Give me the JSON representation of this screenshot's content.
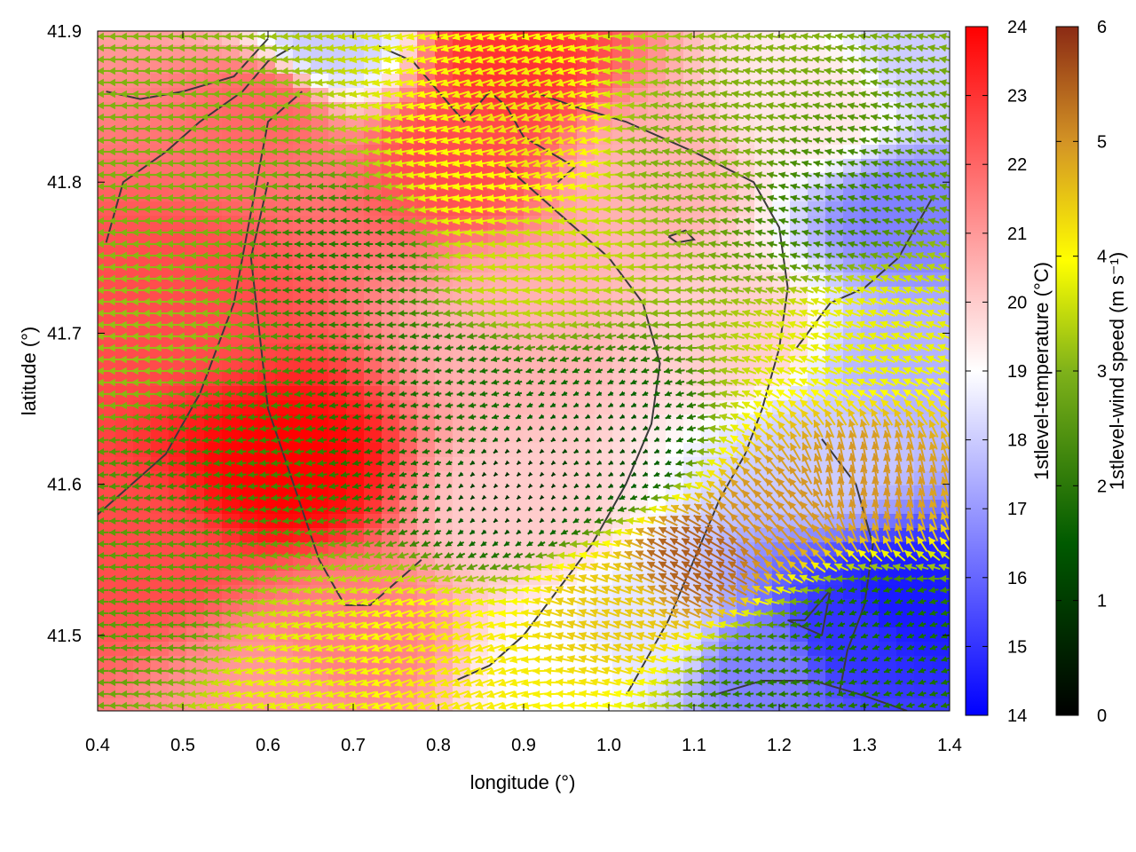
{
  "chart_data": {
    "type": "heatmap",
    "title": "",
    "xlabel": "longitude (°)",
    "ylabel": "latitude (°)",
    "xlim": [
      0.4,
      1.4
    ],
    "ylim": [
      41.45,
      41.9
    ],
    "grid": false,
    "x_ticks": [
      {
        "value": 0.4,
        "label": "0.4"
      },
      {
        "value": 0.5,
        "label": "0.5"
      },
      {
        "value": 0.6,
        "label": "0.6"
      },
      {
        "value": 0.7,
        "label": "0.7"
      },
      {
        "value": 0.8,
        "label": "0.8"
      },
      {
        "value": 0.9,
        "label": "0.9"
      },
      {
        "value": 1.0,
        "label": "1.0"
      },
      {
        "value": 1.1,
        "label": "1.1"
      },
      {
        "value": 1.2,
        "label": "1.2"
      },
      {
        "value": 1.3,
        "label": "1.3"
      },
      {
        "value": 1.4,
        "label": "1.4"
      }
    ],
    "y_ticks": [
      {
        "value": 41.5,
        "label": "41.5"
      },
      {
        "value": 41.6,
        "label": "41.6"
      },
      {
        "value": 41.7,
        "label": "41.7"
      },
      {
        "value": 41.8,
        "label": "41.8"
      },
      {
        "value": 41.9,
        "label": "41.9"
      }
    ],
    "temperature_colorbar": {
      "label": "1stlevel-temperature (°C)",
      "range": [
        14,
        24
      ],
      "ticks": [
        "14",
        "15",
        "16",
        "17",
        "18",
        "19",
        "20",
        "21",
        "22",
        "23",
        "24"
      ],
      "colors": [
        "#0000ff",
        "#ffffff",
        "#ff0000"
      ]
    },
    "wind_colorbar": {
      "label": "1stlevel-wind speed (m s⁻¹)",
      "range": [
        0,
        6
      ],
      "ticks": [
        "0",
        "1",
        "2",
        "3",
        "4",
        "5",
        "6"
      ],
      "colors": [
        "#000000",
        "#006400",
        "#9acd32",
        "#ffff00",
        "#cd853f",
        "#8b2500"
      ]
    },
    "temperature_field": [
      {
        "lon": 0.62,
        "lat": 41.61,
        "value": 24.0
      },
      {
        "lon": 0.5,
        "lat": 41.72,
        "value": 22.5
      },
      {
        "lon": 0.45,
        "lat": 41.55,
        "value": 22.5
      },
      {
        "lon": 0.82,
        "lat": 41.82,
        "value": 22.5
      },
      {
        "lon": 0.88,
        "lat": 41.88,
        "value": 23.0
      },
      {
        "lon": 0.6,
        "lat": 41.85,
        "value": 22.0
      },
      {
        "lon": 0.7,
        "lat": 41.5,
        "value": 21.5
      },
      {
        "lon": 0.9,
        "lat": 41.7,
        "value": 20.5
      },
      {
        "lon": 0.9,
        "lat": 41.58,
        "value": 20.0
      },
      {
        "lon": 1.05,
        "lat": 41.8,
        "value": 20.5
      },
      {
        "lon": 1.15,
        "lat": 41.7,
        "value": 20.0
      },
      {
        "lon": 1.25,
        "lat": 41.85,
        "value": 19.5
      },
      {
        "lon": 0.67,
        "lat": 41.89,
        "value": 18.0
      },
      {
        "lon": 1.38,
        "lat": 41.88,
        "value": 18.0
      },
      {
        "lon": 1.35,
        "lat": 41.78,
        "value": 16.5
      },
      {
        "lon": 1.35,
        "lat": 41.68,
        "value": 17.5
      },
      {
        "lon": 1.25,
        "lat": 41.62,
        "value": 18.0
      },
      {
        "lon": 1.35,
        "lat": 41.52,
        "value": 14.5
      },
      {
        "lon": 1.28,
        "lat": 41.5,
        "value": 15.0
      },
      {
        "lon": 1.18,
        "lat": 41.48,
        "value": 16.5
      },
      {
        "lon": 1.05,
        "lat": 41.5,
        "value": 18.5
      },
      {
        "lon": 0.95,
        "lat": 41.47,
        "value": 19.0
      },
      {
        "lon": 0.6,
        "lat": 41.46,
        "value": 21.0
      }
    ],
    "wind_field": [
      {
        "lon": 0.5,
        "lat": 41.8,
        "speed": 2.8,
        "dir": 180
      },
      {
        "lon": 0.45,
        "lat": 41.7,
        "speed": 3.0,
        "dir": 180
      },
      {
        "lon": 0.55,
        "lat": 41.62,
        "speed": 2.2,
        "dir": 185
      },
      {
        "lon": 0.45,
        "lat": 41.52,
        "speed": 2.5,
        "dir": 180
      },
      {
        "lon": 0.7,
        "lat": 41.75,
        "speed": 2.0,
        "dir": 180
      },
      {
        "lon": 0.85,
        "lat": 41.8,
        "speed": 4.0,
        "dir": 190
      },
      {
        "lon": 0.9,
        "lat": 41.83,
        "speed": 4.3,
        "dir": 200
      },
      {
        "lon": 0.9,
        "lat": 41.75,
        "speed": 3.5,
        "dir": 185
      },
      {
        "lon": 1.1,
        "lat": 41.82,
        "speed": 2.8,
        "dir": 170
      },
      {
        "lon": 1.25,
        "lat": 41.78,
        "speed": 2.2,
        "dir": 165
      },
      {
        "lon": 1.3,
        "lat": 41.7,
        "speed": 3.8,
        "dir": 160
      },
      {
        "lon": 0.8,
        "lat": 41.65,
        "speed": 1.6,
        "dir": 190
      },
      {
        "lon": 0.9,
        "lat": 41.6,
        "speed": 0.5,
        "dir": 225
      },
      {
        "lon": 1.0,
        "lat": 41.62,
        "speed": 0.8,
        "dir": 210
      },
      {
        "lon": 1.1,
        "lat": 41.55,
        "speed": 5.5,
        "dir": 150
      },
      {
        "lon": 1.2,
        "lat": 41.58,
        "speed": 5.0,
        "dir": 130
      },
      {
        "lon": 1.3,
        "lat": 41.6,
        "speed": 5.0,
        "dir": 100
      },
      {
        "lon": 1.0,
        "lat": 41.52,
        "speed": 4.5,
        "dir": 160
      },
      {
        "lon": 1.3,
        "lat": 41.5,
        "speed": 1.5,
        "dir": 200
      },
      {
        "lon": 1.2,
        "lat": 41.47,
        "speed": 2.0,
        "dir": 185
      },
      {
        "lon": 0.8,
        "lat": 41.48,
        "speed": 4.2,
        "dir": 200
      },
      {
        "lon": 0.65,
        "lat": 41.47,
        "speed": 3.8,
        "dir": 195
      }
    ],
    "contour_lines": [
      [
        [
          0.6,
          41.895
        ],
        [
          0.56,
          41.87
        ],
        [
          0.5,
          41.86
        ],
        [
          0.45,
          41.855
        ],
        [
          0.41,
          41.86
        ]
      ],
      [
        [
          0.41,
          41.76
        ],
        [
          0.43,
          41.8
        ],
        [
          0.48,
          41.82
        ],
        [
          0.52,
          41.84
        ],
        [
          0.57,
          41.86
        ],
        [
          0.6,
          41.88
        ],
        [
          0.63,
          41.89
        ]
      ],
      [
        [
          0.6,
          41.8
        ],
        [
          0.58,
          41.75
        ],
        [
          0.59,
          41.7
        ],
        [
          0.6,
          41.65
        ],
        [
          0.63,
          41.6
        ],
        [
          0.66,
          41.55
        ],
        [
          0.69,
          41.52
        ],
        [
          0.72,
          41.52
        ],
        [
          0.78,
          41.55
        ]
      ],
      [
        [
          0.4,
          41.58
        ],
        [
          0.44,
          41.6
        ],
        [
          0.48,
          41.62
        ],
        [
          0.52,
          41.66
        ],
        [
          0.56,
          41.72
        ],
        [
          0.58,
          41.78
        ],
        [
          0.6,
          41.84
        ],
        [
          0.64,
          41.86
        ]
      ],
      [
        [
          0.73,
          41.89
        ],
        [
          0.77,
          41.88
        ],
        [
          0.8,
          41.86
        ],
        [
          0.83,
          41.84
        ],
        [
          0.86,
          41.86
        ],
        [
          0.88,
          41.85
        ],
        [
          0.9,
          41.83
        ],
        [
          0.93,
          41.82
        ],
        [
          0.96,
          41.81
        ],
        [
          0.94,
          41.8
        ]
      ],
      [
        [
          0.88,
          41.81
        ],
        [
          0.92,
          41.79
        ],
        [
          0.96,
          41.77
        ],
        [
          1.0,
          41.75
        ],
        [
          1.04,
          41.72
        ],
        [
          1.06,
          41.68
        ],
        [
          1.05,
          41.64
        ],
        [
          1.02,
          41.6
        ],
        [
          0.98,
          41.56
        ],
        [
          0.94,
          41.53
        ],
        [
          0.9,
          41.5
        ],
        [
          0.86,
          41.48
        ],
        [
          0.82,
          41.47
        ]
      ],
      [
        [
          0.91,
          41.86
        ],
        [
          0.96,
          41.85
        ],
        [
          1.02,
          41.84
        ],
        [
          1.1,
          41.82
        ],
        [
          1.17,
          41.8
        ],
        [
          1.2,
          41.77
        ],
        [
          1.21,
          41.73
        ],
        [
          1.2,
          41.69
        ],
        [
          1.18,
          41.65
        ],
        [
          1.16,
          41.62
        ],
        [
          1.13,
          41.59
        ],
        [
          1.1,
          41.55
        ],
        [
          1.07,
          41.51
        ],
        [
          1.04,
          41.48
        ],
        [
          1.02,
          41.46
        ]
      ],
      [
        [
          1.22,
          41.69
        ],
        [
          1.26,
          41.72
        ],
        [
          1.3,
          41.73
        ],
        [
          1.34,
          41.75
        ],
        [
          1.38,
          41.79
        ]
      ],
      [
        [
          1.25,
          41.63
        ],
        [
          1.29,
          41.6
        ],
        [
          1.31,
          41.56
        ],
        [
          1.3,
          41.52
        ],
        [
          1.28,
          41.49
        ],
        [
          1.27,
          41.46
        ]
      ],
      [
        [
          1.12,
          41.46
        ],
        [
          1.18,
          41.47
        ],
        [
          1.24,
          41.47
        ],
        [
          1.3,
          41.46
        ],
        [
          1.35,
          41.45
        ]
      ],
      [
        [
          1.25,
          41.5
        ],
        [
          1.26,
          41.53
        ],
        [
          1.23,
          41.51
        ],
        [
          1.21,
          41.51
        ],
        [
          1.25,
          41.5
        ]
      ],
      [
        [
          1.07,
          41.764
        ],
        [
          1.09,
          41.768
        ],
        [
          1.1,
          41.762
        ],
        [
          1.08,
          41.76
        ],
        [
          1.07,
          41.764
        ]
      ]
    ]
  }
}
